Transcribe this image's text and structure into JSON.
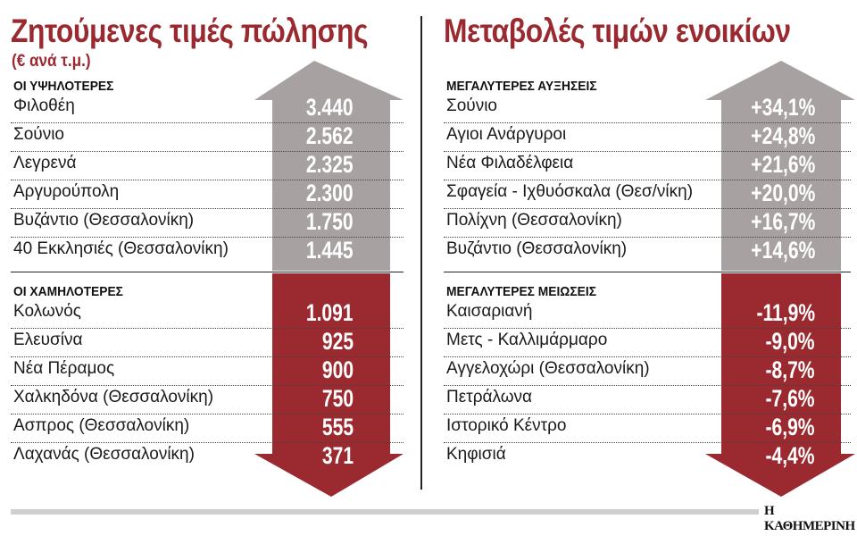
{
  "colors": {
    "accent": "#9b2a30",
    "gray": "#a7a2a1",
    "red_arrow": "#9b2a30"
  },
  "chart_data": [
    {
      "type": "table",
      "title": "Ζητούμενες τιμές πώλησης",
      "subtitle": "(€ ανά τ.μ.)",
      "sections": [
        {
          "header": "ΟΙ ΥΨΗΛΟΤΕΡΕΣ",
          "rows": [
            {
              "name": "Φιλοθέη",
              "value": "3.440"
            },
            {
              "name": "Σούνιο",
              "value": "2.562"
            },
            {
              "name": "Λεγρενά",
              "value": "2.325"
            },
            {
              "name": "Αργυρούπολη",
              "value": "2.300"
            },
            {
              "name": "Βυζάντιο (Θεσσαλονίκη)",
              "value": "1.750"
            },
            {
              "name": "40 Εκκλησιές (Θεσσαλονίκη)",
              "value": "1.445"
            }
          ]
        },
        {
          "header": "ΟΙ ΧΑΜΗΛΟΤΕΡΕΣ",
          "rows": [
            {
              "name": "Κολωνός",
              "value": "1.091"
            },
            {
              "name": "Ελευσίνα",
              "value": "925"
            },
            {
              "name": "Νέα Πέραμος",
              "value": "900"
            },
            {
              "name": "Χαλκηδόνα (Θεσσαλονίκη)",
              "value": "750"
            },
            {
              "name": "Ασπρος (Θεσσαλονίκη)",
              "value": "555"
            },
            {
              "name": "Λαχανάς (Θεσσαλονίκη)",
              "value": "371"
            }
          ]
        }
      ]
    },
    {
      "type": "table",
      "title": "Μεταβολές τιμών ενοικίων",
      "sections": [
        {
          "header": "ΜΕΓΑΛΥΤΕΡΕΣ ΑΥΞΗΣΕΙΣ",
          "rows": [
            {
              "name": "Σούνιο",
              "value": "+34,1%"
            },
            {
              "name": "Αγιοι Ανάργυροι",
              "value": "+24,8%"
            },
            {
              "name": "Νέα Φιλαδέλφεια",
              "value": "+21,6%"
            },
            {
              "name": "Σφαγεία - Ιχθυόσκαλα (Θεσ/νίκη)",
              "value": "+20,0%"
            },
            {
              "name": "Πολίχνη (Θεσσαλονίκη)",
              "value": "+16,7%"
            },
            {
              "name": "Βυζάντιο (Θεσσαλονίκη)",
              "value": "+14,6%"
            }
          ]
        },
        {
          "header": "ΜΕΓΑΛΥΤΕΡΕΣ ΜΕΙΩΣΕΙΣ",
          "rows": [
            {
              "name": "Καισαριανή",
              "value": "-11,9%"
            },
            {
              "name": "Μετς - Καλλιμάρμαρο",
              "value": "-9,0%"
            },
            {
              "name": "Αγγελοχώρι (Θεσσαλονίκη)",
              "value": "-8,7%"
            },
            {
              "name": "Πετράλωνα",
              "value": "-7,6%"
            },
            {
              "name": "Ιστορικό Κέντρο",
              "value": "-6,9%"
            },
            {
              "name": "Κηφισιά",
              "value": "-4,4%"
            }
          ]
        }
      ]
    }
  ],
  "footer": {
    "brand": "Η ΚΑΘΗΜΕΡΙΝΗ"
  }
}
